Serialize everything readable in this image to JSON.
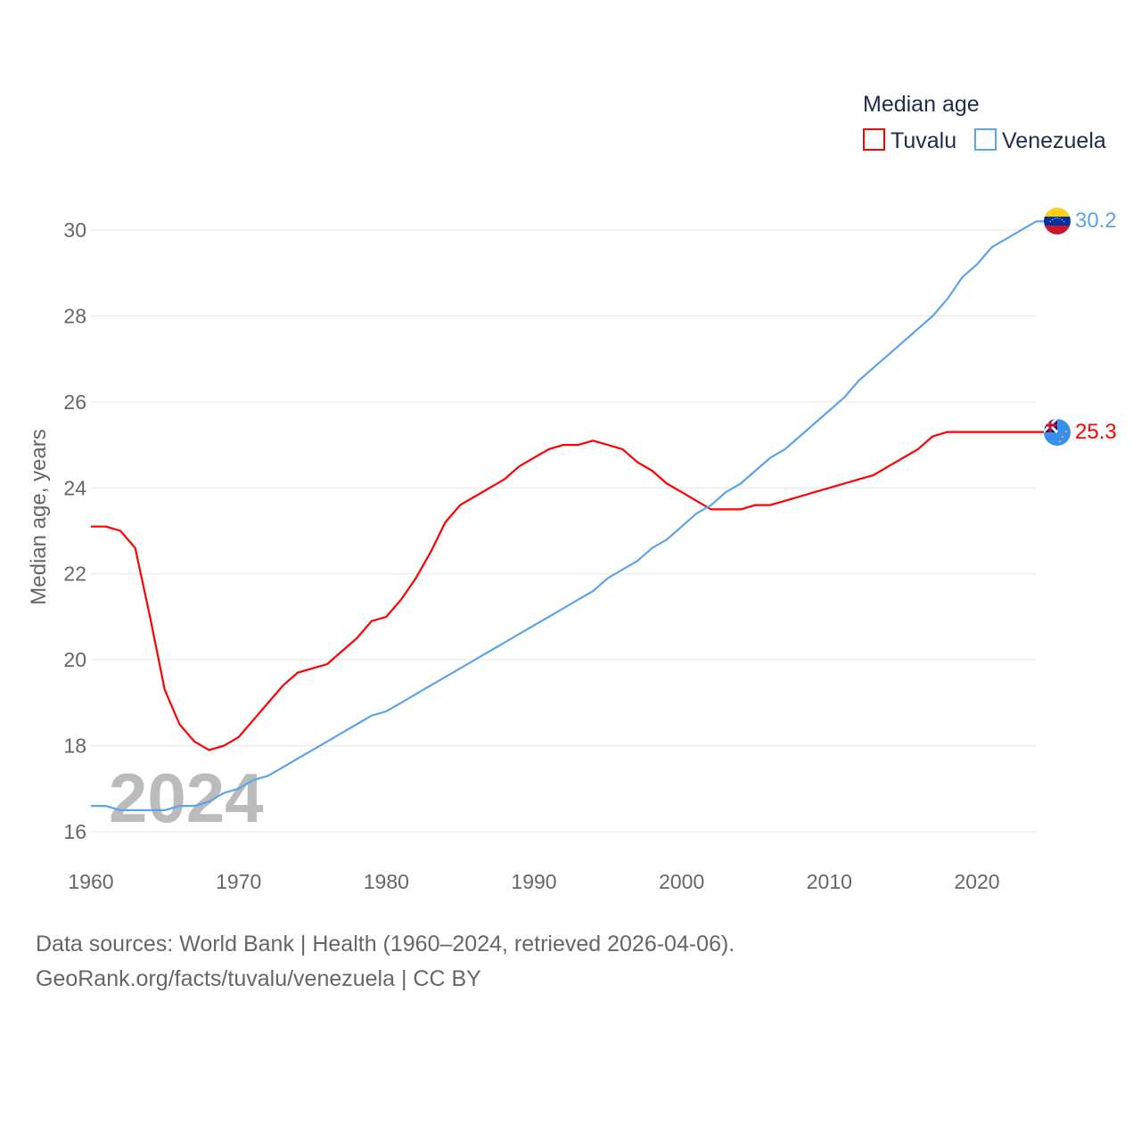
{
  "chart_data": {
    "type": "line",
    "title": "",
    "xlabel": "",
    "ylabel": "Median age, years",
    "xlim": [
      1960,
      2024
    ],
    "ylim": [
      16,
      30.5
    ],
    "x_ticks": [
      1960,
      1970,
      1980,
      1990,
      2000,
      2010,
      2020
    ],
    "y_ticks": [
      16,
      18,
      20,
      22,
      24,
      26,
      28,
      30
    ],
    "grid": true,
    "legend_title": "Median age",
    "legend_position": "top-right",
    "watermark_year": "2024",
    "x": [
      1960,
      1961,
      1962,
      1963,
      1964,
      1965,
      1966,
      1967,
      1968,
      1969,
      1970,
      1971,
      1972,
      1973,
      1974,
      1975,
      1976,
      1977,
      1978,
      1979,
      1980,
      1981,
      1982,
      1983,
      1984,
      1985,
      1986,
      1987,
      1988,
      1989,
      1990,
      1991,
      1992,
      1993,
      1994,
      1995,
      1996,
      1997,
      1998,
      1999,
      2000,
      2001,
      2002,
      2003,
      2004,
      2005,
      2006,
      2007,
      2008,
      2009,
      2010,
      2011,
      2012,
      2013,
      2014,
      2015,
      2016,
      2017,
      2018,
      2019,
      2020,
      2021,
      2022,
      2023,
      2024
    ],
    "series": [
      {
        "name": "Tuvalu",
        "color": "#ff0000",
        "end_label": "25.3",
        "values": [
          23.1,
          23.1,
          23.0,
          22.6,
          21.0,
          19.3,
          18.5,
          18.1,
          17.9,
          18.0,
          18.2,
          18.6,
          19.0,
          19.4,
          19.7,
          19.8,
          19.9,
          20.2,
          20.5,
          20.9,
          21.0,
          21.4,
          21.9,
          22.5,
          23.2,
          23.6,
          23.8,
          24.0,
          24.2,
          24.5,
          24.7,
          24.9,
          25.0,
          25.0,
          25.1,
          25.0,
          24.9,
          24.6,
          24.4,
          24.1,
          23.9,
          23.7,
          23.5,
          23.5,
          23.5,
          23.6,
          23.6,
          23.7,
          23.8,
          23.9,
          24.0,
          24.1,
          24.2,
          24.3,
          24.5,
          24.7,
          24.9,
          25.2,
          25.3,
          25.3,
          25.3,
          25.3,
          25.3,
          25.3,
          25.3
        ]
      },
      {
        "name": "Venezuela",
        "color": "#5ba3ec",
        "end_label": "30.2",
        "values": [
          16.6,
          16.6,
          16.5,
          16.5,
          16.5,
          16.5,
          16.6,
          16.6,
          16.7,
          16.9,
          17.0,
          17.2,
          17.3,
          17.5,
          17.7,
          17.9,
          18.1,
          18.3,
          18.5,
          18.7,
          18.8,
          19.0,
          19.2,
          19.4,
          19.6,
          19.8,
          20.0,
          20.2,
          20.4,
          20.6,
          20.8,
          21.0,
          21.2,
          21.4,
          21.6,
          21.9,
          22.1,
          22.3,
          22.6,
          22.8,
          23.1,
          23.4,
          23.6,
          23.9,
          24.1,
          24.4,
          24.7,
          24.9,
          25.2,
          25.5,
          25.8,
          26.1,
          26.5,
          26.8,
          27.1,
          27.4,
          27.7,
          28.0,
          28.4,
          28.9,
          29.2,
          29.6,
          29.8,
          30.0,
          30.2
        ]
      }
    ]
  },
  "footer": {
    "line1": "Data sources: World Bank | Health (1960–2024, retrieved 2026-04-06).",
    "line2": "GeoRank.org/facts/tuvalu/venezuela | CC BY"
  }
}
